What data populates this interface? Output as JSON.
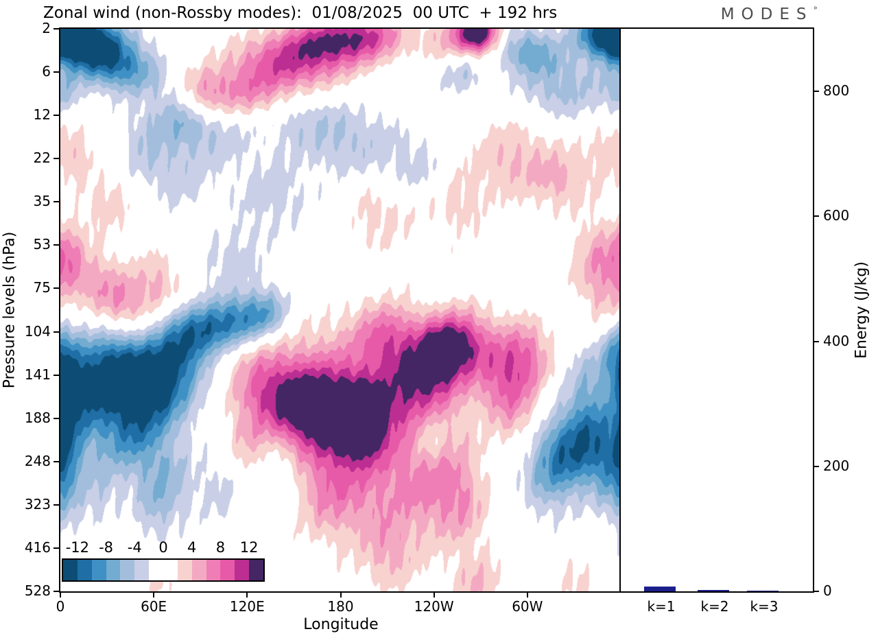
{
  "header": {
    "logo_text": "MODES",
    "logo_degree": "°"
  },
  "chart_data": {
    "type": "contour",
    "title": "Zonal wind (non-Rossby modes):  01/08/2025  00 UTC  + 192 hrs",
    "xlabel": "Longitude",
    "ylabel": "Pressure levels (hPa)",
    "grid": false,
    "y_ticks": [
      "2",
      "6",
      "12",
      "22",
      "35",
      "53",
      "75",
      "104",
      "141",
      "188",
      "248",
      "323",
      "416",
      "528"
    ],
    "x_ticks": [
      {
        "label": "0",
        "lon": 0
      },
      {
        "label": "60E",
        "lon": 60
      },
      {
        "label": "120E",
        "lon": 120
      },
      {
        "label": "180",
        "lon": 180
      },
      {
        "label": "120W",
        "lon": 240
      },
      {
        "label": "60W",
        "lon": 300
      }
    ],
    "contour_interval": 2,
    "colorbar": {
      "tick_labels": [
        "-12",
        "-8",
        "-4",
        "0",
        "4",
        "8",
        "12"
      ],
      "tick_values": [
        -12,
        -8,
        -4,
        0,
        4,
        8,
        12
      ],
      "colors": [
        "#0d4d75",
        "#1f6ea6",
        "#3f90c4",
        "#74abd0",
        "#a3bedd",
        "#c9cfe6",
        "#ffffff",
        "#ffffff",
        "#f8d2cf",
        "#f4a9c2",
        "#ee7eb5",
        "#e75aa8",
        "#bc2e92",
        "#432663"
      ]
    },
    "features": [
      {
        "lon": 8,
        "p": 2.5,
        "amp": -12,
        "sx": 14,
        "sy": 0.035
      },
      {
        "lon": 26,
        "p": 4,
        "amp": -11,
        "sx": 16,
        "sy": 0.035
      },
      {
        "lon": 45,
        "p": 6,
        "amp": -6,
        "sx": 15,
        "sy": 0.03
      },
      {
        "lon": 0,
        "p": 9,
        "amp": -4,
        "sx": 10,
        "sy": 0.03
      },
      {
        "lon": 72,
        "p": 12,
        "amp": -4,
        "sx": 14,
        "sy": 0.035
      },
      {
        "lon": 52,
        "p": 20,
        "amp": -3,
        "sx": 10,
        "sy": 0.04
      },
      {
        "lon": 120,
        "p": 9,
        "amp": 6,
        "sx": 22,
        "sy": 0.035
      },
      {
        "lon": 148,
        "p": 5,
        "amp": 9,
        "sx": 25,
        "sy": 0.035
      },
      {
        "lon": 175,
        "p": 3,
        "amp": 9,
        "sx": 20,
        "sy": 0.03
      },
      {
        "lon": 200,
        "p": 2.5,
        "amp": 6,
        "sx": 15,
        "sy": 0.03
      },
      {
        "lon": 92,
        "p": 9,
        "amp": 4,
        "sx": 10,
        "sy": 0.03
      },
      {
        "lon": 268,
        "p": 2.2,
        "amp": 13,
        "sx": 9,
        "sy": 0.025
      },
      {
        "lon": 255,
        "p": 3,
        "amp": 5,
        "sx": 18,
        "sy": 0.03
      },
      {
        "lon": 300,
        "p": 4,
        "amp": -7,
        "sx": 14,
        "sy": 0.03
      },
      {
        "lon": 345,
        "p": 2.5,
        "amp": -9,
        "sx": 12,
        "sy": 0.03
      },
      {
        "lon": 322,
        "p": 8,
        "amp": -5,
        "sx": 18,
        "sy": 0.04
      },
      {
        "lon": 258,
        "p": 6,
        "amp": -4,
        "sx": 10,
        "sy": 0.03
      },
      {
        "lon": 357,
        "p": 2,
        "amp": -8,
        "sx": 8,
        "sy": 0.03
      },
      {
        "lon": 95,
        "p": 16,
        "amp": -4,
        "sx": 20,
        "sy": 0.04
      },
      {
        "lon": 150,
        "p": 12,
        "amp": -3,
        "sx": 18,
        "sy": 0.035
      },
      {
        "lon": 185,
        "p": 18,
        "amp": -4,
        "sx": 22,
        "sy": 0.045
      },
      {
        "lon": 228,
        "p": 25,
        "amp": -3,
        "sx": 16,
        "sy": 0.04
      },
      {
        "lon": 135,
        "p": 33,
        "amp": -3,
        "sx": 18,
        "sy": 0.05
      },
      {
        "lon": 75,
        "p": 28,
        "amp": -3,
        "sx": 14,
        "sy": 0.04
      },
      {
        "lon": 110,
        "p": 60,
        "amp": -3,
        "sx": 15,
        "sy": 0.04
      },
      {
        "lon": 290,
        "p": 22,
        "amp": 4,
        "sx": 18,
        "sy": 0.05
      },
      {
        "lon": 322,
        "p": 28,
        "amp": 4,
        "sx": 14,
        "sy": 0.04
      },
      {
        "lon": 352,
        "p": 20,
        "amp": 3,
        "sx": 10,
        "sy": 0.04
      },
      {
        "lon": 255,
        "p": 35,
        "amp": 3,
        "sx": 14,
        "sy": 0.05
      },
      {
        "lon": 205,
        "p": 40,
        "amp": 3,
        "sx": 16,
        "sy": 0.05
      },
      {
        "lon": 345,
        "p": 60,
        "amp": 5,
        "sx": 12,
        "sy": 0.05
      },
      {
        "lon": 352,
        "p": 90,
        "amp": 4,
        "sx": 10,
        "sy": 0.05
      },
      {
        "lon": 4,
        "p": 60,
        "amp": 6,
        "sx": 8,
        "sy": 0.045
      },
      {
        "lon": 40,
        "p": 85,
        "amp": 6,
        "sx": 12,
        "sy": 0.04
      },
      {
        "lon": 22,
        "p": 70,
        "amp": 4,
        "sx": 10,
        "sy": 0.04
      },
      {
        "lon": 62,
        "p": 72,
        "amp": 4,
        "sx": 10,
        "sy": 0.04
      },
      {
        "lon": 30,
        "p": 35,
        "amp": 3,
        "sx": 12,
        "sy": 0.04
      },
      {
        "lon": 10,
        "p": 20,
        "amp": 3,
        "sx": 8,
        "sy": 0.035
      },
      {
        "lon": 113,
        "p": 96,
        "amp": -9,
        "sx": 15,
        "sy": 0.032
      },
      {
        "lon": 93,
        "p": 104,
        "amp": -6,
        "sx": 12,
        "sy": 0.03
      },
      {
        "lon": 133,
        "p": 90,
        "amp": -5,
        "sx": 10,
        "sy": 0.03
      },
      {
        "lon": 57,
        "p": 150,
        "amp": -15,
        "sx": 20,
        "sy": 0.055
      },
      {
        "lon": 30,
        "p": 135,
        "amp": -8,
        "sx": 15,
        "sy": 0.05
      },
      {
        "lon": 78,
        "p": 115,
        "amp": -7,
        "sx": 12,
        "sy": 0.04
      },
      {
        "lon": 12,
        "p": 175,
        "amp": -8,
        "sx": 12,
        "sy": 0.06
      },
      {
        "lon": 45,
        "p": 215,
        "amp": -7,
        "sx": 15,
        "sy": 0.05
      },
      {
        "lon": 2,
        "p": 130,
        "amp": -7,
        "sx": 8,
        "sy": 0.05
      },
      {
        "lon": 3,
        "p": 225,
        "amp": -6,
        "sx": 6,
        "sy": 0.05
      },
      {
        "lon": 2,
        "p": 300,
        "amp": -4,
        "sx": 8,
        "sy": 0.06
      },
      {
        "lon": 25,
        "p": 300,
        "amp": -3,
        "sx": 10,
        "sy": 0.05
      },
      {
        "lon": 70,
        "p": 280,
        "amp": -4,
        "sx": 12,
        "sy": 0.05
      },
      {
        "lon": 185,
        "p": 160,
        "amp": 8,
        "sx": 45,
        "sy": 0.075
      },
      {
        "lon": 170,
        "p": 185,
        "amp": 7,
        "sx": 18,
        "sy": 0.05
      },
      {
        "lon": 193,
        "p": 195,
        "amp": 11,
        "sx": 12,
        "sy": 0.045
      },
      {
        "lon": 246,
        "p": 120,
        "amp": 12,
        "sx": 12,
        "sy": 0.04
      },
      {
        "lon": 230,
        "p": 150,
        "amp": 7,
        "sx": 15,
        "sy": 0.05
      },
      {
        "lon": 262,
        "p": 110,
        "amp": 6,
        "sx": 12,
        "sy": 0.04
      },
      {
        "lon": 150,
        "p": 170,
        "amp": 6,
        "sx": 15,
        "sy": 0.05
      },
      {
        "lon": 128,
        "p": 150,
        "amp": 4,
        "sx": 12,
        "sy": 0.05
      },
      {
        "lon": 210,
        "p": 105,
        "amp": 6,
        "sx": 15,
        "sy": 0.04
      },
      {
        "lon": 280,
        "p": 140,
        "amp": 5,
        "sx": 12,
        "sy": 0.05
      },
      {
        "lon": 298,
        "p": 125,
        "amp": 7,
        "sx": 12,
        "sy": 0.045
      },
      {
        "lon": 292,
        "p": 175,
        "amp": 4,
        "sx": 10,
        "sy": 0.05
      },
      {
        "lon": 237,
        "p": 215,
        "amp": -4,
        "sx": 8,
        "sy": 0.04
      },
      {
        "lon": 205,
        "p": 290,
        "amp": 5,
        "sx": 30,
        "sy": 0.07
      },
      {
        "lon": 172,
        "p": 300,
        "amp": 4,
        "sx": 15,
        "sy": 0.06
      },
      {
        "lon": 240,
        "p": 270,
        "amp": 4,
        "sx": 15,
        "sy": 0.06
      },
      {
        "lon": 212,
        "p": 430,
        "amp": 4,
        "sx": 14,
        "sy": 0.05
      },
      {
        "lon": 258,
        "p": 330,
        "amp": 4,
        "sx": 12,
        "sy": 0.06
      },
      {
        "lon": 268,
        "p": 520,
        "amp": 4,
        "sx": 12,
        "sy": 0.04
      },
      {
        "lon": 332,
        "p": 515,
        "amp": 3,
        "sx": 8,
        "sy": 0.035
      },
      {
        "lon": 120,
        "p": 240,
        "amp": 3,
        "sx": 10,
        "sy": 0.05
      },
      {
        "lon": 326,
        "p": 235,
        "amp": -9,
        "sx": 14,
        "sy": 0.05
      },
      {
        "lon": 342,
        "p": 205,
        "amp": -5,
        "sx": 12,
        "sy": 0.05
      },
      {
        "lon": 312,
        "p": 280,
        "amp": -4,
        "sx": 12,
        "sy": 0.05
      },
      {
        "lon": 352,
        "p": 260,
        "amp": -5,
        "sx": 10,
        "sy": 0.05
      },
      {
        "lon": 338,
        "p": 150,
        "amp": -4,
        "sx": 10,
        "sy": 0.06
      },
      {
        "lon": 355,
        "p": 115,
        "amp": -4,
        "sx": 8,
        "sy": 0.05
      },
      {
        "lon": 60,
        "p": 330,
        "amp": -3,
        "sx": 10,
        "sy": 0.05
      },
      {
        "lon": 105,
        "p": 290,
        "amp": -3,
        "sx": 12,
        "sy": 0.05
      },
      {
        "lon": 140,
        "p": 270,
        "amp": -3,
        "sx": 10,
        "sy": 0.05
      },
      {
        "lon": 62,
        "p": 490,
        "amp": 3,
        "sx": 6,
        "sy": 0.03
      }
    ],
    "energy_panel": {
      "type": "bar",
      "categories": [
        "k=1",
        "k=2",
        "k=3"
      ],
      "values": [
        8,
        2,
        1
      ],
      "ylabel": "Energy (J/kg)",
      "y_ticks": [
        0,
        200,
        400,
        600,
        800
      ],
      "ylim": [
        0,
        900
      ],
      "bar_color": "#1a1f8c"
    }
  }
}
